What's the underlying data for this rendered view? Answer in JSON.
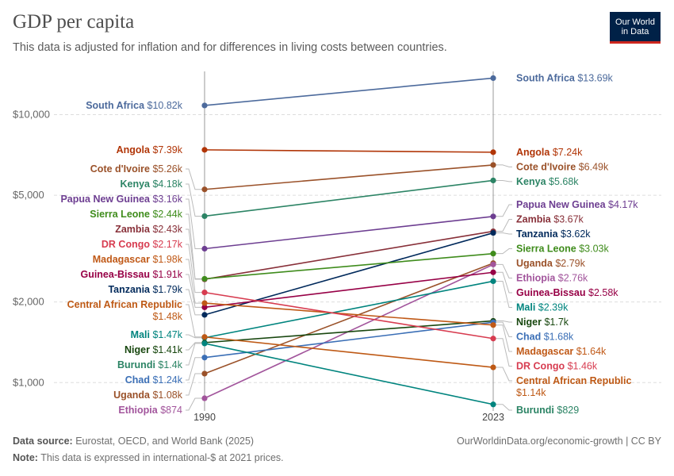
{
  "header": {
    "title": "GDP per capita",
    "subtitle": "This data is adjusted for inflation and for differences in living costs between countries.",
    "logo_line1": "Our World",
    "logo_line2": "in Data"
  },
  "footer": {
    "source_label": "Data source:",
    "source_text": "Eurostat, OECD, and World Bank (2025)",
    "note_label": "Note:",
    "note_text": "This data is expressed in international-$ at 2021 prices.",
    "right_text": "OurWorldinData.org/economic-growth | CC BY"
  },
  "colors": {
    "grid": "#dddddd",
    "axis": "#999999",
    "tick_text": "#666666",
    "connector": "#bbbbbb"
  },
  "chart_data": {
    "type": "slope",
    "title": "GDP per capita",
    "x": [
      "1990",
      "2023"
    ],
    "y_scale": "log",
    "ylim": [
      800,
      14500
    ],
    "yticks": [
      1000,
      2000,
      5000,
      10000
    ],
    "ytick_labels": [
      "$1,000",
      "$2,000",
      "$5,000",
      "$10,000"
    ],
    "grid": true,
    "series": [
      {
        "name": "South Africa",
        "color": "#4c6a9c",
        "values": [
          10820,
          13690
        ],
        "labels": [
          "$10.82k",
          "$13.69k"
        ]
      },
      {
        "name": "Angola",
        "color": "#b13507",
        "values": [
          7390,
          7240
        ],
        "labels": [
          "$7.39k",
          "$7.24k"
        ]
      },
      {
        "name": "Cote d'Ivoire",
        "color": "#9a5129",
        "values": [
          5260,
          6490
        ],
        "labels": [
          "$5.26k",
          "$6.49k"
        ]
      },
      {
        "name": "Kenya",
        "color": "#2c8465",
        "values": [
          4180,
          5680
        ],
        "labels": [
          "$4.18k",
          "$5.68k"
        ]
      },
      {
        "name": "Papua New Guinea",
        "color": "#6d3e91",
        "values": [
          3160,
          4170
        ],
        "labels": [
          "$3.16k",
          "$4.17k"
        ]
      },
      {
        "name": "Zambia",
        "color": "#883039",
        "values": [
          2430,
          3670
        ],
        "labels": [
          "$2.43k",
          "$3.67k"
        ]
      },
      {
        "name": "Tanzania",
        "color": "#00295b",
        "values": [
          1790,
          3620
        ],
        "labels": [
          "$1.79k",
          "$3.62k"
        ]
      },
      {
        "name": "Sierra Leone",
        "color": "#3f8c1c",
        "values": [
          2440,
          3030
        ],
        "labels": [
          "$2.44k",
          "$3.03k"
        ]
      },
      {
        "name": "Uganda",
        "color": "#a2559c",
        "values": [
          1080,
          2790
        ],
        "labels": [
          "$1.08k",
          "$2.79k"
        ],
        "label_color": "#9a5129",
        "line_color": "#9a5129"
      },
      {
        "name": "Ethiopia",
        "color": "#a2559c",
        "values": [
          874,
          2760
        ],
        "labels": [
          "$874",
          "$2.76k"
        ]
      },
      {
        "name": "Guinea-Bissau",
        "color": "#970046",
        "values": [
          1910,
          2580
        ],
        "labels": [
          "$1.91k",
          "$2.58k"
        ]
      },
      {
        "name": "Mali",
        "color": "#00847e",
        "values": [
          1470,
          2390
        ],
        "labels": [
          "$1.47k",
          "$2.39k"
        ]
      },
      {
        "name": "Niger",
        "color": "#18470f",
        "values": [
          1410,
          1700
        ],
        "labels": [
          "$1.41k",
          "$1.7k"
        ]
      },
      {
        "name": "Chad",
        "color": "#3b6fb6",
        "values": [
          1240,
          1680
        ],
        "labels": [
          "$1.24k",
          "$1.68k"
        ]
      },
      {
        "name": "Madagascar",
        "color": "#c05917",
        "values": [
          1980,
          1640
        ],
        "labels": [
          "$1.98k",
          "$1.64k"
        ]
      },
      {
        "name": "DR Congo",
        "color": "#d73c50",
        "values": [
          2170,
          1460
        ],
        "labels": [
          "$2.17k",
          "$1.46k"
        ]
      },
      {
        "name": "Central African Republic",
        "color": "#be5915",
        "values": [
          1480,
          1140
        ],
        "labels": [
          "$1.48k",
          "$1.14k"
        ]
      },
      {
        "name": "Burundi",
        "color": "#00847e",
        "values": [
          1400,
          829
        ],
        "labels": [
          "$1.4k",
          "$829"
        ],
        "label_color": "#2c8465"
      }
    ]
  }
}
